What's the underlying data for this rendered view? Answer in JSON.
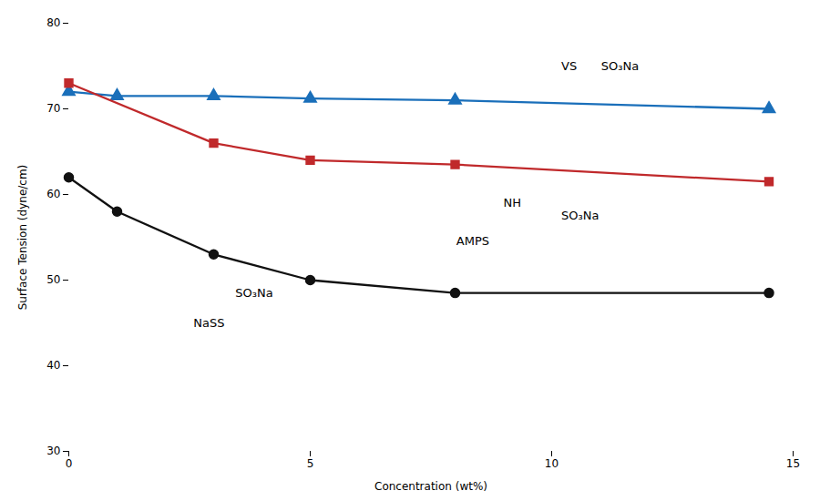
{
  "chart_data": {
    "type": "line",
    "xlabel": "Concentration (wt%)",
    "ylabel": "Surface Tension (dyne/cm)",
    "xlim": [
      0,
      15
    ],
    "ylim": [
      30,
      80
    ],
    "xticks": [
      0,
      5,
      10,
      15
    ],
    "yticks": [
      30,
      40,
      50,
      60,
      70,
      80
    ],
    "series": [
      {
        "name": "VS",
        "color": "#1a6fba",
        "marker": "triangle",
        "x": [
          0,
          1,
          3,
          5,
          8,
          14.5
        ],
        "values": [
          72.0,
          71.5,
          71.5,
          71.2,
          71.0,
          70.0
        ]
      },
      {
        "name": "AMPS",
        "color": "#c0292b",
        "marker": "square",
        "x": [
          0,
          3,
          5,
          8,
          14.5
        ],
        "values": [
          73.0,
          66.0,
          64.0,
          63.5,
          61.5
        ]
      },
      {
        "name": "NaSS",
        "color": "#111111",
        "marker": "circle",
        "x": [
          0,
          1,
          3,
          5,
          8,
          14.5
        ],
        "values": [
          62.0,
          58.0,
          53.0,
          50.0,
          48.5,
          48.5
        ]
      }
    ],
    "annotations": [
      "VS",
      "SO₃Na",
      "NaSS",
      "SO₃Na",
      "AMPS",
      "NH",
      "SO₃Na"
    ]
  }
}
